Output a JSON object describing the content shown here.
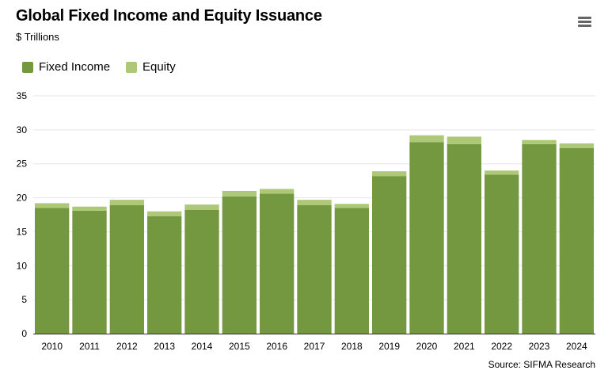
{
  "chart_data": {
    "type": "bar",
    "stacked": true,
    "title": "Global Fixed Income and Equity Issuance",
    "subtitle": "$ Trillions",
    "source": "Source: SIFMA Research",
    "categories": [
      "2010",
      "2011",
      "2012",
      "2013",
      "2014",
      "2015",
      "2016",
      "2017",
      "2018",
      "2019",
      "2020",
      "2021",
      "2022",
      "2023",
      "2024"
    ],
    "series": [
      {
        "name": "Fixed Income",
        "color": "#74983f",
        "values": [
          18.5,
          18.1,
          18.9,
          17.3,
          18.2,
          20.2,
          20.6,
          18.9,
          18.5,
          23.2,
          28.2,
          27.9,
          23.4,
          27.9,
          27.3
        ]
      },
      {
        "name": "Equity",
        "color": "#adc978",
        "values": [
          0.7,
          0.6,
          0.8,
          0.7,
          0.8,
          0.8,
          0.7,
          0.8,
          0.6,
          0.7,
          1.0,
          1.1,
          0.6,
          0.6,
          0.7
        ]
      }
    ],
    "yticks": [
      "0",
      "5",
      "10",
      "15",
      "20",
      "25",
      "30",
      "35"
    ],
    "ylim": [
      0,
      35
    ],
    "grid": true,
    "legend_position": "top-left"
  },
  "header": {
    "menu_icon": "hamburger-menu-icon"
  }
}
